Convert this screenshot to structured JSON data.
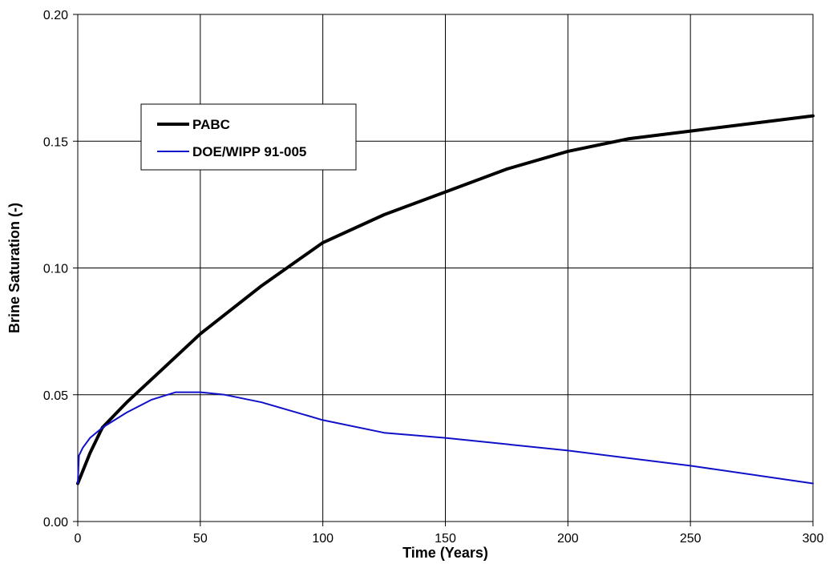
{
  "chart_data": {
    "type": "line",
    "xlabel": "Time (Years)",
    "ylabel": "Brine Saturation (-)",
    "xlim": [
      0,
      300
    ],
    "ylim": [
      0,
      0.2
    ],
    "x_ticks": [
      "0",
      "50",
      "100",
      "150",
      "200",
      "250",
      "300"
    ],
    "y_ticks": [
      "0.00",
      "0.05",
      "0.10",
      "0.15",
      "0.20"
    ],
    "grid": true,
    "legend_position": "upper-left",
    "series": [
      {
        "name": "PABC",
        "color": "#000000",
        "points": [
          [
            0,
            0.015
          ],
          [
            5,
            0.027
          ],
          [
            10,
            0.037
          ],
          [
            20,
            0.047
          ],
          [
            30,
            0.056
          ],
          [
            40,
            0.065
          ],
          [
            50,
            0.074
          ],
          [
            75,
            0.093
          ],
          [
            100,
            0.11
          ],
          [
            125,
            0.121
          ],
          [
            150,
            0.13
          ],
          [
            175,
            0.139
          ],
          [
            200,
            0.146
          ],
          [
            225,
            0.151
          ],
          [
            250,
            0.154
          ],
          [
            275,
            0.157
          ],
          [
            300,
            0.16
          ]
        ]
      },
      {
        "name": "DOE/WIPP 91-005",
        "color": "#1010c8",
        "points": [
          [
            0,
            0.015
          ],
          [
            0.5,
            0.026
          ],
          [
            2,
            0.029
          ],
          [
            5,
            0.033
          ],
          [
            10,
            0.037
          ],
          [
            20,
            0.043
          ],
          [
            30,
            0.048
          ],
          [
            40,
            0.051
          ],
          [
            50,
            0.051
          ],
          [
            60,
            0.05
          ],
          [
            75,
            0.047
          ],
          [
            100,
            0.04
          ],
          [
            125,
            0.035
          ],
          [
            150,
            0.033
          ],
          [
            200,
            0.028
          ],
          [
            250,
            0.022
          ],
          [
            300,
            0.015
          ]
        ]
      }
    ]
  }
}
